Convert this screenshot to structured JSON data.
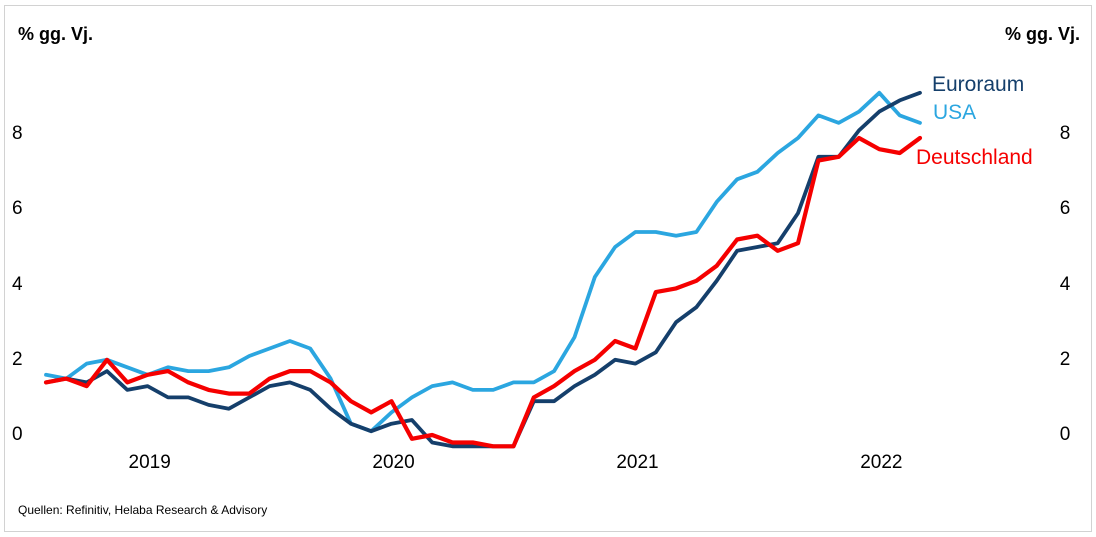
{
  "frame": {
    "unit_label_left": "% gg. Vj.",
    "unit_label_right": "% gg. Vj."
  },
  "source_note": "Quellen: Refinitiv, Helaba Research & Advisory",
  "chart_data": {
    "type": "line",
    "title": "",
    "ylabel_left": "% gg. Vj.",
    "ylabel_right": "% gg. Vj.",
    "x_frequency": "monthly",
    "x": [
      "2019-01",
      "2019-02",
      "2019-03",
      "2019-04",
      "2019-05",
      "2019-06",
      "2019-07",
      "2019-08",
      "2019-09",
      "2019-10",
      "2019-11",
      "2019-12",
      "2020-01",
      "2020-02",
      "2020-03",
      "2020-04",
      "2020-05",
      "2020-06",
      "2020-07",
      "2020-08",
      "2020-09",
      "2020-10",
      "2020-11",
      "2020-12",
      "2021-01",
      "2021-02",
      "2021-03",
      "2021-04",
      "2021-05",
      "2021-06",
      "2021-07",
      "2021-08",
      "2021-09",
      "2021-10",
      "2021-11",
      "2021-12",
      "2022-01",
      "2022-02",
      "2022-03",
      "2022-04",
      "2022-05",
      "2022-06",
      "2022-07",
      "2022-08"
    ],
    "x_year_tick_labels": [
      "2019",
      "2020",
      "2021",
      "2022"
    ],
    "y_ticks": [
      0,
      2,
      4,
      6,
      8
    ],
    "ylim": [
      -0.8,
      9.7
    ],
    "grid": false,
    "dual_axis": true,
    "legend_position": "right-of-line-ends",
    "series": [
      {
        "name": "Euroraum",
        "color": "#153F6B",
        "values": [
          1.4,
          1.5,
          1.4,
          1.7,
          1.2,
          1.3,
          1.0,
          1.0,
          0.8,
          0.7,
          1.0,
          1.3,
          1.4,
          1.2,
          0.7,
          0.3,
          0.1,
          0.3,
          0.4,
          -0.2,
          -0.3,
          -0.3,
          -0.3,
          -0.3,
          0.9,
          0.9,
          1.3,
          1.6,
          2.0,
          1.9,
          2.2,
          3.0,
          3.4,
          4.1,
          4.9,
          5.0,
          5.1,
          5.9,
          7.4,
          7.4,
          8.1,
          8.6,
          8.9,
          9.1
        ]
      },
      {
        "name": "USA",
        "color": "#2BA6E0",
        "values": [
          1.6,
          1.5,
          1.9,
          2.0,
          1.8,
          1.6,
          1.8,
          1.7,
          1.7,
          1.8,
          2.1,
          2.3,
          2.5,
          2.3,
          1.5,
          0.3,
          0.1,
          0.6,
          1.0,
          1.3,
          1.4,
          1.2,
          1.2,
          1.4,
          1.4,
          1.7,
          2.6,
          4.2,
          5.0,
          5.4,
          5.4,
          5.3,
          5.4,
          6.2,
          6.8,
          7.0,
          7.5,
          7.9,
          8.5,
          8.3,
          8.6,
          9.1,
          8.5,
          8.3
        ]
      },
      {
        "name": "Deutschland",
        "color": "#F50000",
        "values": [
          1.4,
          1.5,
          1.3,
          2.0,
          1.4,
          1.6,
          1.7,
          1.4,
          1.2,
          1.1,
          1.1,
          1.5,
          1.7,
          1.7,
          1.4,
          0.9,
          0.6,
          0.9,
          -0.1,
          0.0,
          -0.2,
          -0.2,
          -0.3,
          -0.3,
          1.0,
          1.3,
          1.7,
          2.0,
          2.5,
          2.3,
          3.8,
          3.9,
          4.1,
          4.5,
          5.2,
          5.3,
          4.9,
          5.1,
          7.3,
          7.4,
          7.9,
          7.6,
          7.5,
          7.9
        ]
      }
    ],
    "source": "Quellen: Refinitiv, Helaba Research & Advisory"
  }
}
